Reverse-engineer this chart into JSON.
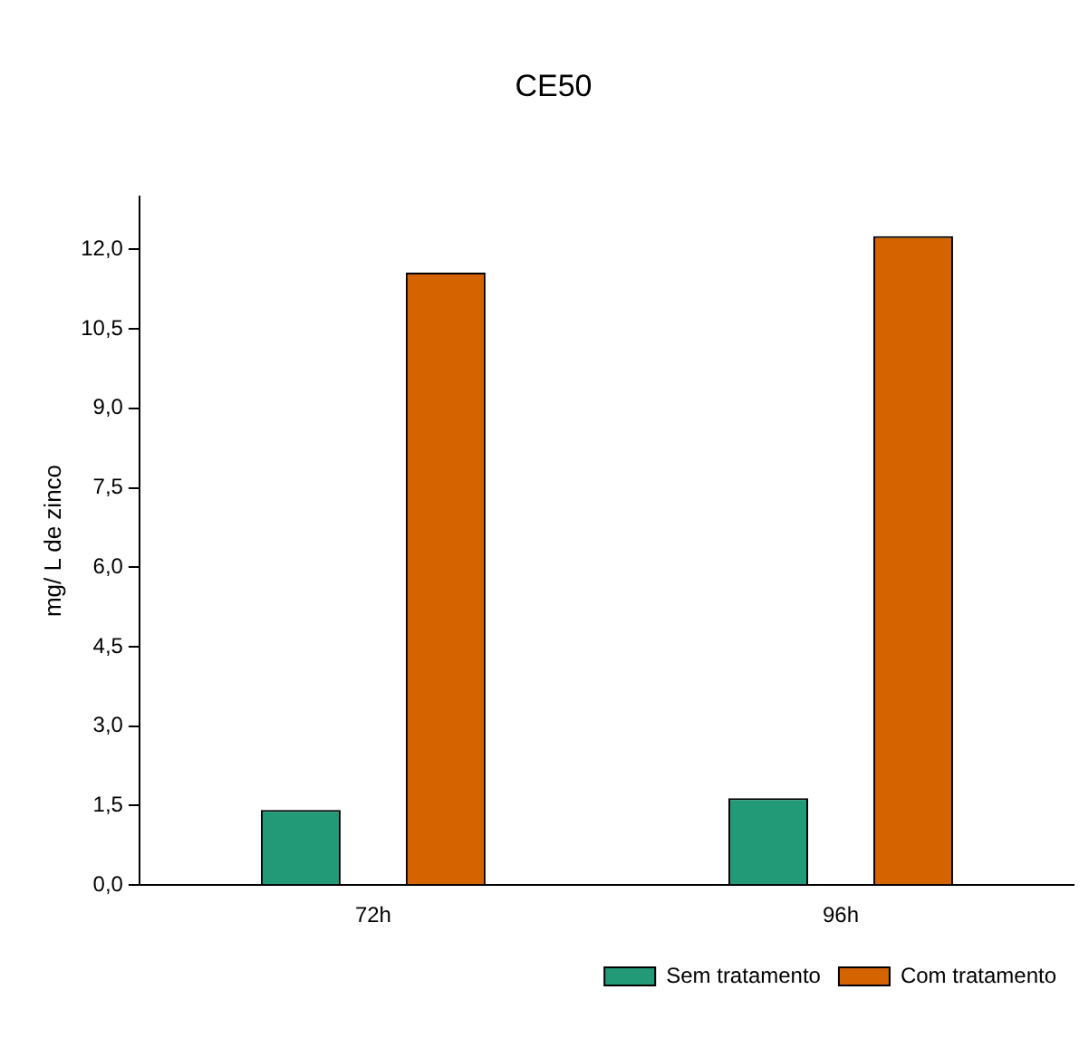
{
  "chart_data": {
    "type": "bar",
    "title": "CE50",
    "ylabel": "mg/ L de zinco",
    "categories": [
      "72h",
      "96h"
    ],
    "series": [
      {
        "name": "Sem tratamento",
        "color": "#229a78",
        "values": [
          1.42,
          1.64
        ]
      },
      {
        "name": "Com tratamento",
        "color": "#d46300",
        "values": [
          11.56,
          12.25
        ]
      }
    ],
    "ylim": [
      0,
      13
    ],
    "yticks": [
      {
        "value": 0,
        "label": "0,0"
      },
      {
        "value": 1.5,
        "label": "1,5"
      },
      {
        "value": 3,
        "label": "3,0"
      },
      {
        "value": 4.5,
        "label": "4,5"
      },
      {
        "value": 6,
        "label": "6,0"
      },
      {
        "value": 7.5,
        "label": "7,5"
      },
      {
        "value": 9,
        "label": "9,0"
      },
      {
        "value": 10.5,
        "label": "10,5"
      },
      {
        "value": 12,
        "label": "12,0"
      }
    ],
    "grid": false,
    "legend": "bottom right"
  }
}
